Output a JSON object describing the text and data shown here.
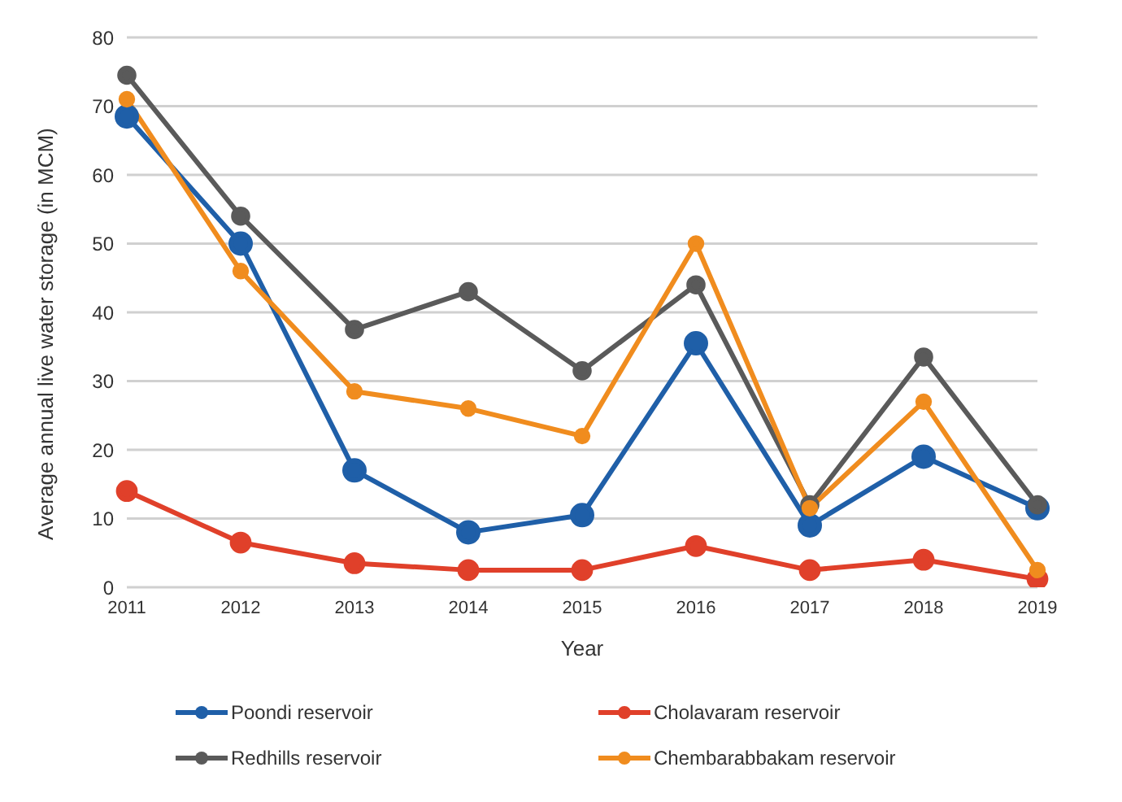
{
  "chart_data": {
    "type": "line",
    "xlabel": "Year",
    "ylabel": "Average annual live water storage (in MCM)",
    "categories": [
      "2011",
      "2012",
      "2013",
      "2014",
      "2015",
      "2016",
      "2017",
      "2018",
      "2019"
    ],
    "series": [
      {
        "name": "Poondi reservoir",
        "color": "#1f5fa8",
        "values": [
          68.5,
          50,
          17,
          8,
          10.5,
          35.5,
          9,
          19,
          11.5
        ]
      },
      {
        "name": "Cholavaram reservoir",
        "color": "#e0402a",
        "values": [
          14,
          6.5,
          3.5,
          2.5,
          2.5,
          6,
          2.5,
          4,
          1.2
        ]
      },
      {
        "name": "Redhills reservoir",
        "color": "#5a5a5a",
        "values": [
          74.5,
          54,
          37.5,
          43,
          31.5,
          44,
          12,
          33.5,
          12
        ]
      },
      {
        "name": "Chembarabbakam reservoir",
        "color": "#f08c1e",
        "values": [
          71,
          46,
          28.5,
          26,
          22,
          50,
          11.5,
          27,
          2.5
        ]
      }
    ],
    "ylim": [
      0,
      80
    ],
    "yticks": [
      0,
      10,
      20,
      30,
      40,
      50,
      60,
      70,
      80
    ],
    "grid": "y",
    "legend": "bottom",
    "marker": "circle",
    "line_style": "solid"
  }
}
